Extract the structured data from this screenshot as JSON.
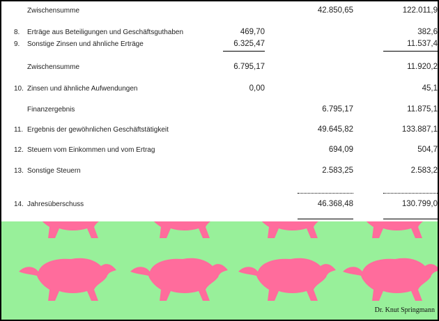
{
  "rows": [
    {
      "label": "Zwischensumme",
      "col2": "42.850,65",
      "col3": "122.011,9"
    },
    {
      "number": "8.",
      "label": "Erträge aus Beteiligungen und Geschäftsguthaben",
      "col1": "469,70",
      "col3": "382,6"
    },
    {
      "number": "9.",
      "label": "Sonstige Zinsen und ähnliche Erträge",
      "col1": "6.325,47",
      "col3": "11.537,4"
    },
    {
      "label": "Zwischensumme",
      "col1": "6.795,17",
      "col3": "11.920,2"
    },
    {
      "number": "10.",
      "label": "Zinsen und ähnliche Aufwendungen",
      "col1": "0,00",
      "col3": "45,1"
    },
    {
      "label": "Finanzergebnis",
      "col2": "6.795,17",
      "col3": "11.875,1"
    },
    {
      "number": "11.",
      "label": "Ergebnis der gewöhnlichen Geschäftstätigkeit",
      "col2": "49.645,82",
      "col3": "133.887,1"
    },
    {
      "number": "12.",
      "label": "Steuern vom Einkommen und vom Ertrag",
      "col2": "694,09",
      "col3": "504,7"
    },
    {
      "number": "13.",
      "label": "Sonstige Steuern",
      "col2": "2.583,25",
      "col3": "2.583,2"
    },
    {
      "number": "14.",
      "label": "Jahresüberschuss",
      "col2": "46.368,48",
      "col3": "130.799,0"
    }
  ],
  "footer": {
    "author": "Dr. Knut Springmann"
  }
}
